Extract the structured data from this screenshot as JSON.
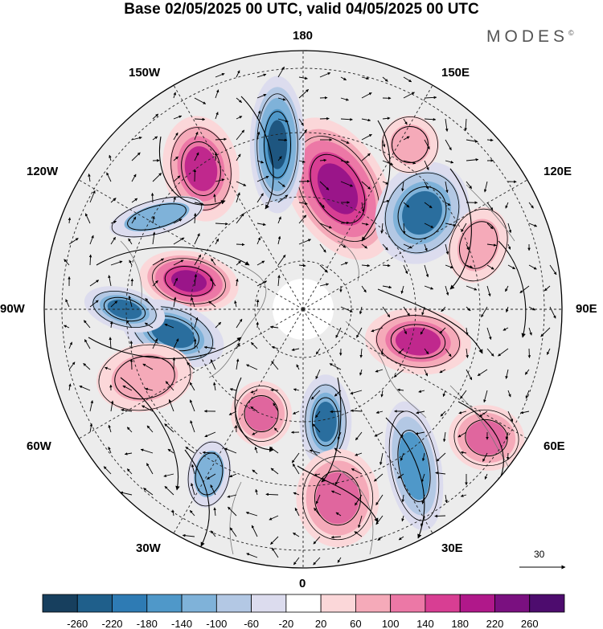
{
  "title": "Base 02/05/2025 00 UTC, valid 04/05/2025 00 UTC",
  "brand": "MODES",
  "brand_mark": "©",
  "longitude_labels": {
    "n180": "180",
    "n150w": "150W",
    "n150e": "150E",
    "n120w": "120W",
    "n120e": "120E",
    "n90w": "90W",
    "n90e": "90E",
    "n60w": "60W",
    "n60e": "60E",
    "n30w": "30W",
    "n30e": "30E",
    "n0": "0"
  },
  "reference_vector": "30",
  "colorbar": {
    "ticks": [
      "-260",
      "-220",
      "-180",
      "-140",
      "-100",
      "-60",
      "-20",
      "20",
      "60",
      "100",
      "140",
      "180",
      "220",
      "260"
    ],
    "colors": [
      "#173f5e",
      "#1f5f8b",
      "#2e7bb4",
      "#4f98c9",
      "#7fb2d9",
      "#b3c8e4",
      "#dcdcee",
      "#ffffff",
      "#fbd7d9",
      "#f5aab9",
      "#ec78a6",
      "#d83e93",
      "#b0188a",
      "#7a1080",
      "#4d0c6e"
    ]
  },
  "anomaly_features": [
    {
      "sign": "positive",
      "level": 4,
      "color": "#9a1589"
    },
    {
      "sign": "positive",
      "level": 4,
      "color": "#9a1589"
    },
    {
      "sign": "negative",
      "level": 4,
      "color": "#1e5680"
    },
    {
      "sign": "negative",
      "level": 3,
      "color": "#2a6e9e"
    },
    {
      "sign": "negative",
      "level": 3,
      "color": "#2a6e9e"
    },
    {
      "sign": "positive",
      "level": 3,
      "color": "#c0288d"
    },
    {
      "sign": "positive",
      "level": 3,
      "color": "#c0288d"
    },
    {
      "sign": "negative",
      "level": 3,
      "color": "#2a6e9e"
    },
    {
      "sign": "positive",
      "level": 2,
      "color": "#e0669e"
    },
    {
      "sign": "negative",
      "level": 3,
      "color": "#2a6e9e"
    },
    {
      "sign": "negative",
      "level": 2,
      "color": "#4f98c9"
    },
    {
      "sign": "positive",
      "level": 2,
      "color": "#e0669e"
    },
    {
      "sign": "positive",
      "level": 2,
      "color": "#e0669e"
    },
    {
      "sign": "negative",
      "level": 1,
      "color": "#7fb2d9"
    },
    {
      "sign": "positive",
      "level": 1,
      "color": "#f5aab9"
    },
    {
      "sign": "positive",
      "level": 1,
      "color": "#f5aab9"
    },
    {
      "sign": "negative",
      "level": 1,
      "color": "#7fb2d9"
    },
    {
      "sign": "positive",
      "level": 1,
      "color": "#f5aab9"
    }
  ]
}
